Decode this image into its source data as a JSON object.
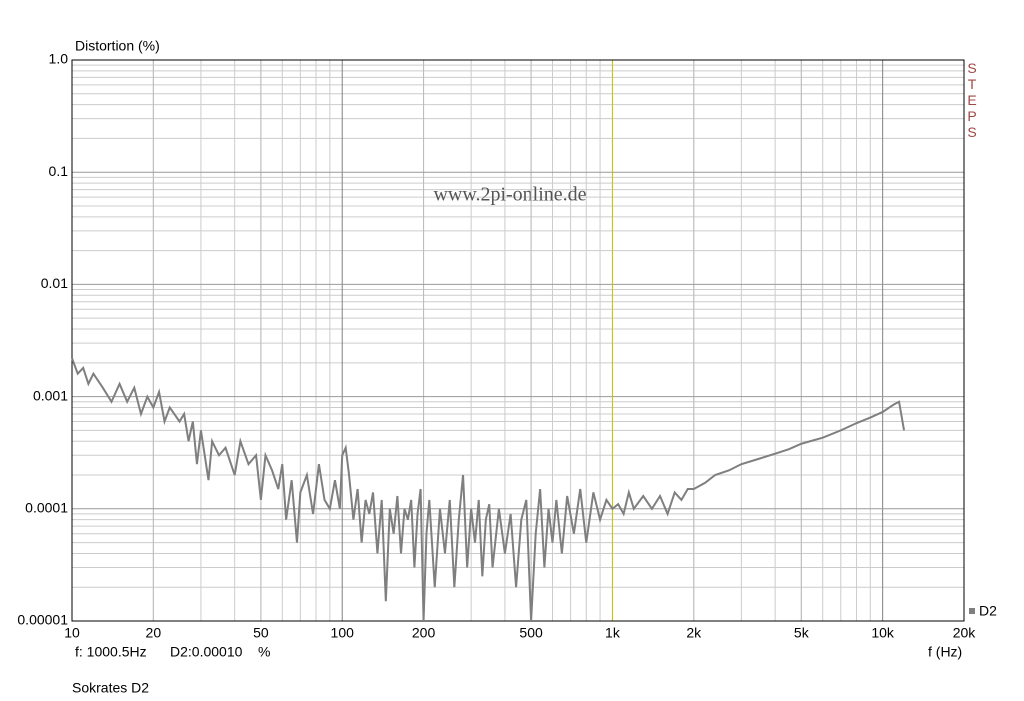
{
  "chart_data": {
    "type": "line",
    "y_label": "Distortion (%)",
    "x_label": "f (Hz)",
    "watermark": "www.2pi-online.de",
    "side_label": "STEPS",
    "caption": "Sokrates D2",
    "log_x": true,
    "log_y": true,
    "grid": true,
    "legend": "bottom-right",
    "xlim": [
      10,
      20000
    ],
    "ylim": [
      1e-05,
      1
    ],
    "xticks": [
      10,
      20,
      50,
      100,
      200,
      500,
      {
        "value": 1000,
        "label": "1k"
      },
      {
        "value": 2000,
        "label": "2k"
      },
      {
        "value": 5000,
        "label": "5k"
      },
      {
        "value": 10000,
        "label": "10k"
      },
      {
        "value": 20000,
        "label": "20k"
      }
    ],
    "yticks": [
      1e-05,
      0.0001,
      0.001,
      0.01,
      0.1,
      {
        "value": 1,
        "label": "1.0"
      }
    ],
    "cursor": {
      "value": 1000.5,
      "label": "f: 1000.5Hz",
      "readout": "D2:0.00010",
      "unit": "%",
      "color": "#c8c800"
    },
    "x": [
      10,
      10.5,
      11,
      11.5,
      12,
      13,
      14,
      15,
      16,
      17,
      18,
      19,
      20,
      21,
      22,
      23,
      25,
      26,
      27,
      28,
      29,
      30,
      32,
      33,
      35,
      37,
      40,
      42,
      45,
      48,
      50,
      52,
      55,
      58,
      60,
      62,
      65,
      68,
      70,
      74,
      78,
      82,
      86,
      90,
      94,
      98,
      100,
      103,
      106,
      110,
      114,
      118,
      122,
      126,
      130,
      135,
      140,
      145,
      150,
      155,
      160,
      165,
      170,
      175,
      180,
      185,
      190,
      195,
      200,
      205,
      210,
      220,
      230,
      240,
      250,
      260,
      270,
      280,
      290,
      300,
      310,
      320,
      330,
      340,
      350,
      360,
      380,
      400,
      420,
      440,
      460,
      480,
      500,
      520,
      540,
      560,
      580,
      600,
      620,
      650,
      680,
      720,
      760,
      800,
      850,
      900,
      950,
      1000,
      1050,
      1100,
      1150,
      1200,
      1300,
      1400,
      1500,
      1600,
      1700,
      1800,
      1900,
      2000,
      2200,
      2400,
      2700,
      3000,
      3500,
      4000,
      4500,
      5000,
      6000,
      7000,
      8000,
      9000,
      10000,
      11000,
      11500,
      12000
    ],
    "series": [
      {
        "name": "D2",
        "color": "#7f7f7f",
        "values": [
          0.0022,
          0.0016,
          0.0018,
          0.0013,
          0.0016,
          0.0012,
          0.0009,
          0.0013,
          0.0009,
          0.0012,
          0.0007,
          0.001,
          0.0008,
          0.0011,
          0.0006,
          0.0008,
          0.0006,
          0.0007,
          0.0004,
          0.0006,
          0.00025,
          0.0005,
          0.00018,
          0.0004,
          0.0003,
          0.00035,
          0.0002,
          0.0004,
          0.00025,
          0.0003,
          0.00012,
          0.0003,
          0.00022,
          0.00015,
          0.00025,
          8e-05,
          0.00018,
          5e-05,
          0.00014,
          0.0002,
          9e-05,
          0.00025,
          0.00012,
          0.0001,
          0.00018,
          0.0001,
          0.0003,
          0.00035,
          0.0002,
          8e-05,
          0.00015,
          5e-05,
          0.00012,
          9e-05,
          0.00014,
          4e-05,
          0.00012,
          1.5e-05,
          0.0001,
          6e-05,
          0.00013,
          4e-05,
          0.0001,
          8e-05,
          0.00012,
          3e-05,
          9e-05,
          0.00015,
          1e-05,
          6e-05,
          0.00012,
          2e-05,
          0.0001,
          4e-05,
          0.00012,
          2e-05,
          8e-05,
          0.0002,
          3e-05,
          0.0001,
          5e-05,
          0.00012,
          2.5e-05,
          8e-05,
          0.00011,
          3e-05,
          0.0001,
          4e-05,
          9e-05,
          2e-05,
          8e-05,
          0.00012,
          1e-05,
          6e-05,
          0.00015,
          3e-05,
          0.0001,
          5e-05,
          0.00012,
          4e-05,
          0.00013,
          6e-05,
          0.00015,
          5e-05,
          0.00014,
          8e-05,
          0.00012,
          0.0001,
          0.00011,
          9e-05,
          0.00014,
          0.0001,
          0.00013,
          0.0001,
          0.00013,
          9e-05,
          0.00014,
          0.00012,
          0.00015,
          0.00015,
          0.00017,
          0.0002,
          0.00022,
          0.00025,
          0.00028,
          0.00031,
          0.00034,
          0.00038,
          0.00043,
          0.0005,
          0.00058,
          0.00065,
          0.00073,
          0.00085,
          0.0009,
          0.0005
        ]
      }
    ]
  }
}
